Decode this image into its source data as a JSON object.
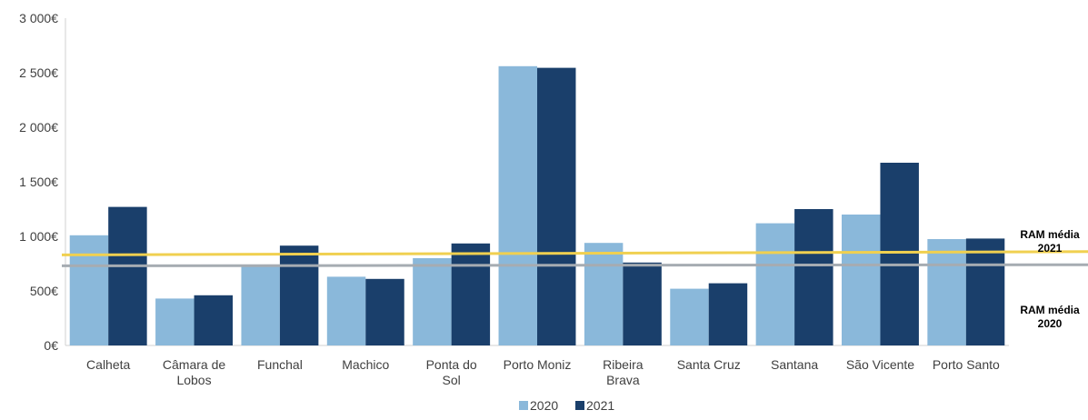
{
  "chart_data": {
    "type": "bar",
    "categories": [
      [
        "Calheta"
      ],
      [
        "Câmara de",
        "Lobos"
      ],
      [
        "Funchal"
      ],
      [
        "Machico"
      ],
      [
        "Ponta do",
        "Sol"
      ],
      [
        "Porto Moniz"
      ],
      [
        "Ribeira",
        "Brava"
      ],
      [
        "Santa Cruz"
      ],
      [
        "Santana"
      ],
      [
        "São Vicente"
      ],
      [
        "Porto Santo"
      ]
    ],
    "series": [
      {
        "name": "2020",
        "color": "#8ab8da",
        "values": [
          1010,
          430,
          740,
          630,
          800,
          2560,
          940,
          520,
          1120,
          1200,
          975
        ]
      },
      {
        "name": "2021",
        "color": "#1a3f6b",
        "values": [
          1270,
          460,
          915,
          610,
          935,
          2545,
          760,
          570,
          1250,
          1675,
          980
        ]
      }
    ],
    "yticks": [
      "0€",
      "500€",
      "1 000€",
      "1 500€",
      "2 000€",
      "2 500€",
      "3 000€"
    ],
    "ylim": [
      0,
      3000
    ],
    "reference_lines": [
      {
        "label": [
          "RAM média",
          "2021"
        ],
        "color": "#f0d050",
        "start": 830,
        "end": 860
      },
      {
        "label": [
          "RAM média",
          "2020"
        ],
        "color": "#a6acb2",
        "start": 730,
        "end": 740
      }
    ],
    "legend": {
      "position": "bottom"
    },
    "title": "",
    "xlabel": "",
    "ylabel": ""
  }
}
